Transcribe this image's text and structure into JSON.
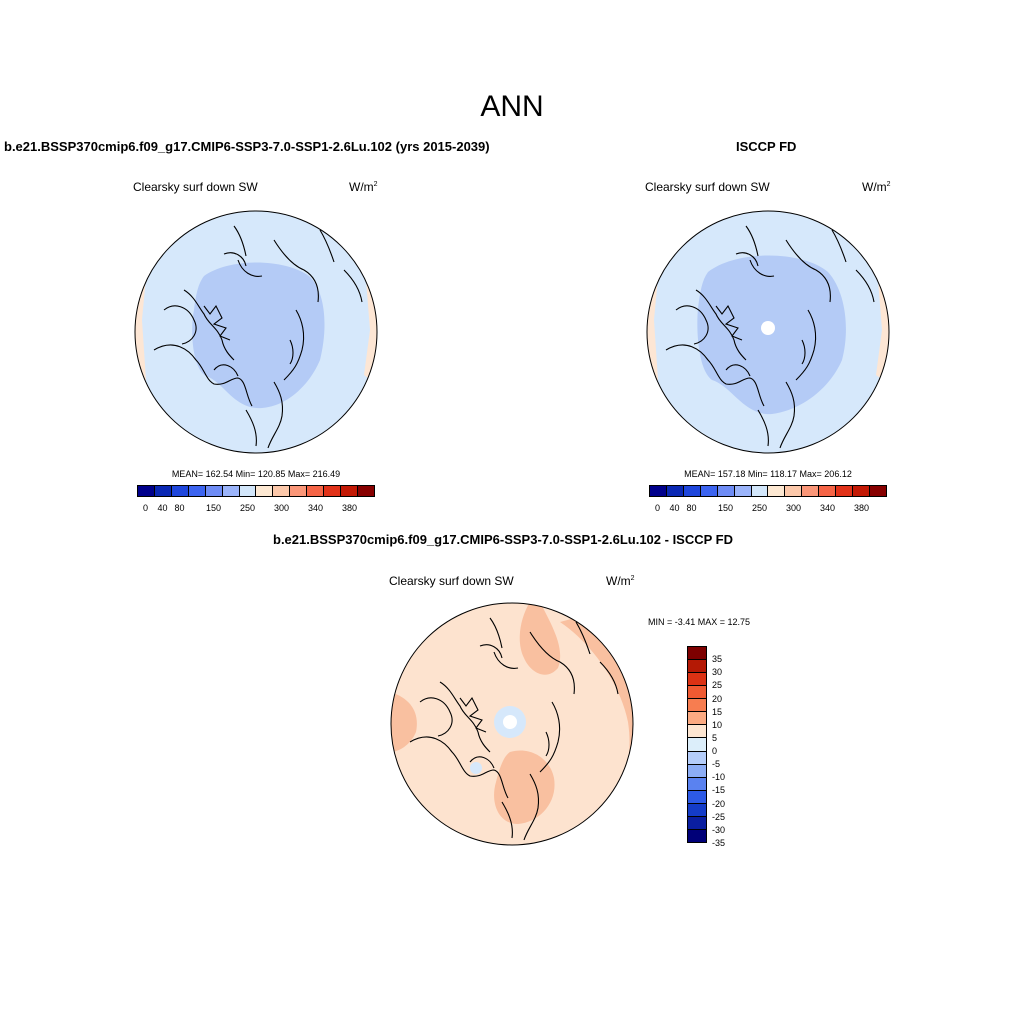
{
  "main_title": "ANN",
  "colors": {
    "abs_scale": [
      "#00008b",
      "#0a28b4",
      "#1e46dc",
      "#3c64f0",
      "#6e8cf5",
      "#9bb4fa",
      "#d2e6fa",
      "#fde8d2",
      "#fcc8aa",
      "#fa9678",
      "#f56446",
      "#e13219",
      "#c31905",
      "#870000"
    ],
    "diff_scale_top_to_bottom": [
      "#7d0000",
      "#b41905",
      "#dc3214",
      "#f05a32",
      "#f77d50",
      "#fbaa82",
      "#fde6d2",
      "#dceefa",
      "#b4cdfa",
      "#8cadf5",
      "#5a82f0",
      "#2d5ae6",
      "#143cc8",
      "#0a1ea0",
      "#000078"
    ],
    "model_fill": "#d6e8fb",
    "model_core": "#b4cbf6",
    "model_edge": "#fde6d4",
    "obs_fill": "#d6e8fb",
    "obs_core": "#b4cbf6",
    "obs_hole": "#ffffff",
    "diff_fill": "#fde3cf",
    "diff_patch": "#f9c0a0",
    "diff_negative": "#d6e8fb"
  },
  "panels": {
    "model": {
      "title": "b.e21.BSSP370cmip6.f09_g17.CMIP6-SSP3-7.0-SSP1-2.6Lu.102 (yrs 2015-2039)",
      "variable": "Clearsky surf down SW",
      "units_base": "W/m",
      "units_exp": "2",
      "stats": "MEAN= 162.54  Min= 120.85  Max= 216.49",
      "mean": 162.54,
      "min": 120.85,
      "max": 216.49,
      "tick_labels": [
        "0",
        "40",
        "80",
        "150",
        "250",
        "300",
        "340",
        "380"
      ]
    },
    "obs": {
      "title": "ISCCP FD",
      "variable": "Clearsky surf down SW",
      "units_base": "W/m",
      "units_exp": "2",
      "stats": "MEAN= 157.18  Min= 118.17  Max= 206.12",
      "mean": 157.18,
      "min": 118.17,
      "max": 206.12,
      "tick_labels": [
        "0",
        "40",
        "80",
        "150",
        "250",
        "300",
        "340",
        "380"
      ]
    },
    "diff": {
      "title": "b.e21.BSSP370cmip6.f09_g17.CMIP6-SSP3-7.0-SSP1-2.6Lu.102 - ISCCP FD",
      "variable": "Clearsky surf down SW",
      "units_base": "W/m",
      "units_exp": "2",
      "minmax": "MIN =  -3.41 MAX =  12.75",
      "min": -3.41,
      "max": 12.75,
      "labels": [
        "35",
        "30",
        "25",
        "20",
        "15",
        "10",
        "5",
        "0",
        "-5",
        "-10",
        "-15",
        "-20",
        "-25",
        "-30",
        "-35"
      ]
    }
  }
}
